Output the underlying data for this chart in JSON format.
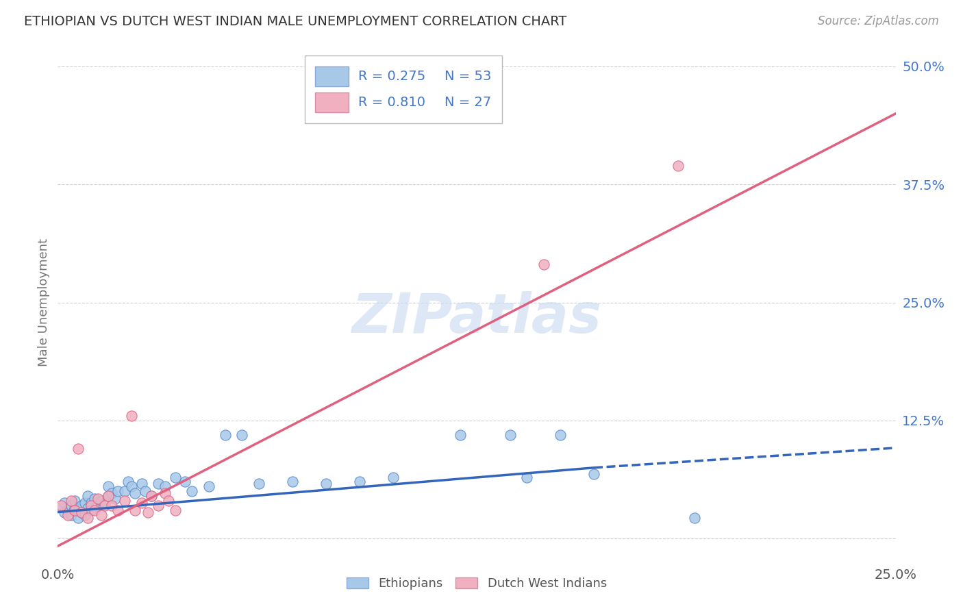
{
  "title": "ETHIOPIAN VS DUTCH WEST INDIAN MALE UNEMPLOYMENT CORRELATION CHART",
  "source": "Source: ZipAtlas.com",
  "ylabel": "Male Unemployment",
  "watermark": "ZIPatlas",
  "xlim": [
    0.0,
    0.25
  ],
  "ylim": [
    -0.025,
    0.525
  ],
  "yticks": [
    0.0,
    0.125,
    0.25,
    0.375,
    0.5
  ],
  "ytick_labels": [
    "",
    "12.5%",
    "25.0%",
    "37.5%",
    "50.0%"
  ],
  "xticks": [
    0.0,
    0.25
  ],
  "xtick_labels": [
    "0.0%",
    "25.0%"
  ],
  "blue_scatter": [
    [
      0.001,
      0.033
    ],
    [
      0.002,
      0.028
    ],
    [
      0.002,
      0.038
    ],
    [
      0.003,
      0.03
    ],
    [
      0.004,
      0.025
    ],
    [
      0.004,
      0.035
    ],
    [
      0.005,
      0.032
    ],
    [
      0.005,
      0.04
    ],
    [
      0.006,
      0.03
    ],
    [
      0.006,
      0.022
    ],
    [
      0.007,
      0.035
    ],
    [
      0.007,
      0.028
    ],
    [
      0.008,
      0.038
    ],
    [
      0.008,
      0.025
    ],
    [
      0.009,
      0.032
    ],
    [
      0.009,
      0.045
    ],
    [
      0.01,
      0.038
    ],
    [
      0.01,
      0.03
    ],
    [
      0.011,
      0.042
    ],
    [
      0.012,
      0.035
    ],
    [
      0.013,
      0.04
    ],
    [
      0.014,
      0.038
    ],
    [
      0.015,
      0.045
    ],
    [
      0.015,
      0.055
    ],
    [
      0.016,
      0.048
    ],
    [
      0.017,
      0.042
    ],
    [
      0.018,
      0.05
    ],
    [
      0.02,
      0.05
    ],
    [
      0.021,
      0.06
    ],
    [
      0.022,
      0.055
    ],
    [
      0.023,
      0.048
    ],
    [
      0.025,
      0.058
    ],
    [
      0.026,
      0.05
    ],
    [
      0.028,
      0.045
    ],
    [
      0.03,
      0.058
    ],
    [
      0.032,
      0.055
    ],
    [
      0.035,
      0.065
    ],
    [
      0.038,
      0.06
    ],
    [
      0.04,
      0.05
    ],
    [
      0.045,
      0.055
    ],
    [
      0.05,
      0.11
    ],
    [
      0.055,
      0.11
    ],
    [
      0.06,
      0.058
    ],
    [
      0.07,
      0.06
    ],
    [
      0.08,
      0.058
    ],
    [
      0.09,
      0.06
    ],
    [
      0.1,
      0.065
    ],
    [
      0.12,
      0.11
    ],
    [
      0.14,
      0.065
    ],
    [
      0.15,
      0.11
    ],
    [
      0.16,
      0.068
    ],
    [
      0.135,
      0.11
    ],
    [
      0.19,
      0.022
    ]
  ],
  "pink_scatter": [
    [
      0.001,
      0.035
    ],
    [
      0.003,
      0.025
    ],
    [
      0.004,
      0.04
    ],
    [
      0.005,
      0.03
    ],
    [
      0.006,
      0.095
    ],
    [
      0.007,
      0.028
    ],
    [
      0.009,
      0.022
    ],
    [
      0.01,
      0.035
    ],
    [
      0.011,
      0.03
    ],
    [
      0.012,
      0.042
    ],
    [
      0.013,
      0.025
    ],
    [
      0.014,
      0.035
    ],
    [
      0.015,
      0.045
    ],
    [
      0.016,
      0.035
    ],
    [
      0.018,
      0.03
    ],
    [
      0.02,
      0.04
    ],
    [
      0.022,
      0.13
    ],
    [
      0.023,
      0.03
    ],
    [
      0.025,
      0.038
    ],
    [
      0.027,
      0.028
    ],
    [
      0.028,
      0.045
    ],
    [
      0.03,
      0.035
    ],
    [
      0.032,
      0.048
    ],
    [
      0.033,
      0.04
    ],
    [
      0.035,
      0.03
    ],
    [
      0.145,
      0.29
    ],
    [
      0.185,
      0.395
    ]
  ],
  "blue_line_solid": {
    "x0": 0.0,
    "x1": 0.16,
    "y0": 0.028,
    "y1": 0.075
  },
  "blue_line_dashed": {
    "x0": 0.16,
    "x1": 0.25,
    "y0": 0.075,
    "y1": 0.096
  },
  "pink_line": {
    "x0": 0.0,
    "x1": 0.25,
    "y0": -0.008,
    "y1": 0.45
  },
  "background_color": "#ffffff",
  "grid_color": "#cccccc",
  "title_color": "#333333",
  "scatter_blue_color": "#a8c8e8",
  "scatter_blue_edge": "#5588cc",
  "scatter_pink_color": "#f0b0c0",
  "scatter_pink_edge": "#e06080",
  "blue_line_color": "#3366bb",
  "pink_line_color": "#e06080",
  "legend_r1": "R = 0.275",
  "legend_n1": "N = 53",
  "legend_r2": "R = 0.810",
  "legend_n2": "N = 27",
  "legend_patch_blue": "#a8c8e8",
  "legend_patch_pink": "#f0b0c0",
  "legend_text_color": "#4477cc",
  "bottom_legend_ethiopians": "Ethiopians",
  "bottom_legend_dutch": "Dutch West Indians"
}
